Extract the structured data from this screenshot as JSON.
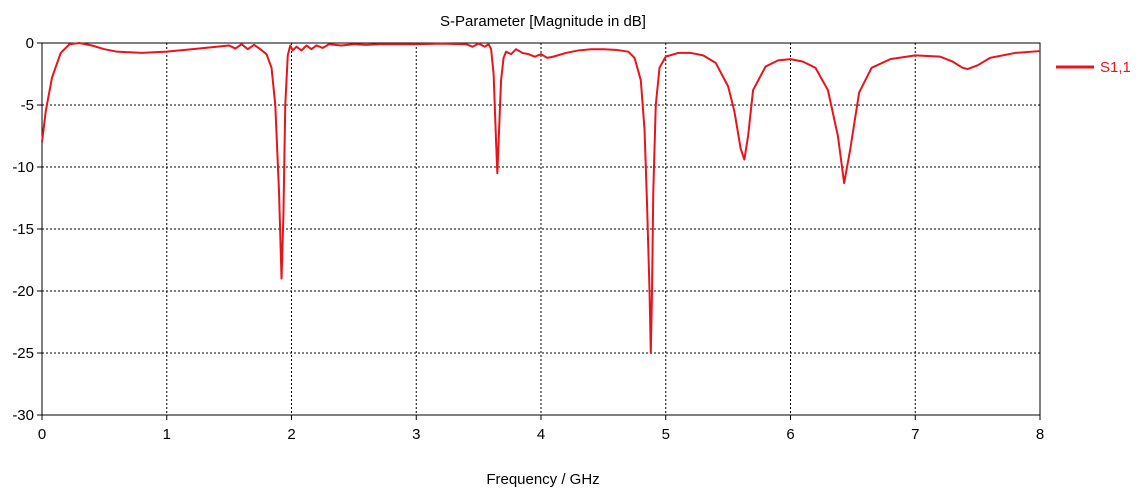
{
  "chart_data": {
    "type": "line",
    "title": "S-Parameter [Magnitude in dB]",
    "xlabel": "Frequency / GHz",
    "ylabel": "",
    "xlim": [
      0,
      8
    ],
    "ylim": [
      -30,
      0
    ],
    "xticks": [
      0,
      1,
      2,
      3,
      4,
      5,
      6,
      7,
      8
    ],
    "yticks": [
      0,
      -5,
      -10,
      -15,
      -20,
      -25,
      -30
    ],
    "grid": true,
    "legend_position": "right",
    "series": [
      {
        "name": "S1,1",
        "color": "#e8141c",
        "x": [
          0,
          0.03,
          0.08,
          0.15,
          0.22,
          0.3,
          0.4,
          0.5,
          0.6,
          0.7,
          0.8,
          1.0,
          1.2,
          1.4,
          1.5,
          1.55,
          1.6,
          1.65,
          1.7,
          1.75,
          1.8,
          1.84,
          1.87,
          1.9,
          1.92,
          1.935,
          1.95,
          1.97,
          1.99,
          2.01,
          2.04,
          2.08,
          2.12,
          2.16,
          2.2,
          2.25,
          2.3,
          2.4,
          2.5,
          2.6,
          2.7,
          2.8,
          3.0,
          3.2,
          3.4,
          3.45,
          3.5,
          3.55,
          3.58,
          3.6,
          3.62,
          3.64,
          3.65,
          3.66,
          3.68,
          3.7,
          3.72,
          3.76,
          3.8,
          3.85,
          3.9,
          3.95,
          4.0,
          4.05,
          4.1,
          4.2,
          4.3,
          4.4,
          4.5,
          4.6,
          4.7,
          4.75,
          4.8,
          4.83,
          4.85,
          4.87,
          4.88,
          4.89,
          4.9,
          4.92,
          4.95,
          5.0,
          5.1,
          5.2,
          5.3,
          5.4,
          5.5,
          5.55,
          5.6,
          5.63,
          5.66,
          5.7,
          5.8,
          5.9,
          6.0,
          6.1,
          6.2,
          6.3,
          6.38,
          6.43,
          6.48,
          6.55,
          6.65,
          6.8,
          7.0,
          7.2,
          7.3,
          7.38,
          7.42,
          7.5,
          7.6,
          7.8,
          8.0
        ],
        "values": [
          -8.0,
          -5.5,
          -2.8,
          -0.8,
          -0.1,
          0.0,
          -0.2,
          -0.5,
          -0.7,
          -0.75,
          -0.8,
          -0.7,
          -0.5,
          -0.3,
          -0.2,
          -0.45,
          -0.1,
          -0.5,
          -0.15,
          -0.5,
          -0.9,
          -2.0,
          -5.0,
          -12.0,
          -19.0,
          -14.0,
          -5.0,
          -1.0,
          -0.2,
          -0.6,
          -0.3,
          -0.6,
          -0.2,
          -0.5,
          -0.2,
          -0.4,
          -0.1,
          -0.2,
          -0.1,
          -0.15,
          -0.1,
          -0.1,
          -0.1,
          -0.05,
          -0.1,
          -0.3,
          -0.05,
          -0.3,
          -0.1,
          -0.5,
          -2.5,
          -8.0,
          -10.5,
          -8.0,
          -3.0,
          -1.2,
          -0.7,
          -0.9,
          -0.5,
          -0.8,
          -0.9,
          -1.1,
          -0.9,
          -1.2,
          -1.1,
          -0.8,
          -0.6,
          -0.5,
          -0.5,
          -0.55,
          -0.7,
          -1.2,
          -3.0,
          -7.0,
          -13.0,
          -20.0,
          -25.0,
          -20.0,
          -12.0,
          -5.0,
          -2.0,
          -1.1,
          -0.8,
          -0.8,
          -1.0,
          -1.6,
          -3.5,
          -5.5,
          -8.5,
          -9.4,
          -7.5,
          -3.8,
          -1.9,
          -1.4,
          -1.3,
          -1.5,
          -2.0,
          -3.8,
          -7.5,
          -11.3,
          -8.5,
          -4.0,
          -2.0,
          -1.3,
          -1.0,
          -1.1,
          -1.5,
          -2.0,
          -2.1,
          -1.8,
          -1.2,
          -0.8,
          -0.65
        ]
      }
    ]
  }
}
